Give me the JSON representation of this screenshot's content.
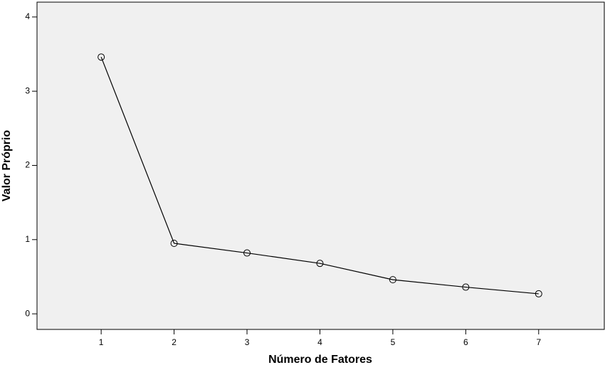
{
  "chart_data": {
    "type": "line",
    "x_label": "Número de Fatores",
    "y_label": "Valor Próprio",
    "x": [
      1,
      2,
      3,
      4,
      5,
      6,
      7
    ],
    "series": [
      {
        "color": "#000000",
        "values": [
          3.46,
          0.95,
          0.82,
          0.68,
          0.46,
          0.36,
          0.27
        ]
      }
    ],
    "xlim": [
      0.12,
      7.9
    ],
    "ylim": [
      -0.21,
      4.2
    ],
    "xticks": [
      1,
      2,
      3,
      4,
      5,
      6,
      7
    ],
    "yticks": [
      0,
      1,
      2,
      3,
      4
    ],
    "grid": false
  }
}
